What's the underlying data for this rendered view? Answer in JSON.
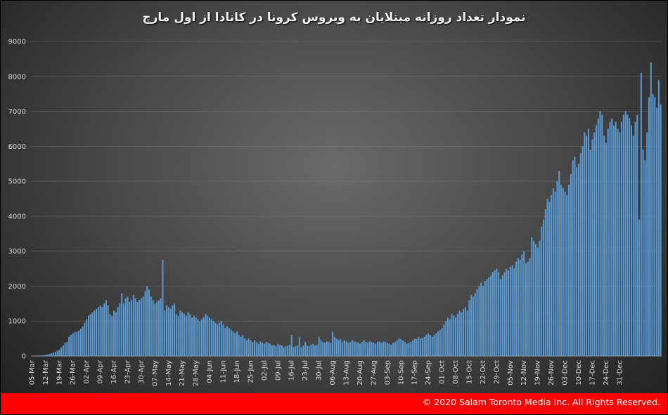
{
  "title": "نمودار تعداد روزانه مبتلایان به ویروس کرونا در کانادا از اول مارچ",
  "footer": {
    "copyright": "© 2020 Salam Toronto Media Inc. All Rights Reserved."
  },
  "colors": {
    "bar": "#5b9bd5",
    "footer": "#ff0000",
    "grid": "#8a8a8a"
  },
  "chart_data": {
    "type": "bar",
    "title": "نمودار تعداد روزانه مبتلایان به ویروس کرونا در کانادا از اول مارچ",
    "xlabel": "",
    "ylabel": "",
    "ylim": [
      0,
      9000
    ],
    "yticks": [
      0,
      1000,
      2000,
      3000,
      4000,
      5000,
      6000,
      7000,
      8000,
      9000
    ],
    "grid": true,
    "legend": "none",
    "x_start": "05-Mar",
    "x_end": "06-Jan",
    "xtick_labels": [
      "05-Mar",
      "12-Mar",
      "19-Mar",
      "26-Mar",
      "02-Apr",
      "09-Apr",
      "16-Apr",
      "23-Apr",
      "30-Apr",
      "07-May",
      "14-May",
      "21-May",
      "28-May",
      "04-Jun",
      "11-Jun",
      "18-Jun",
      "25-Jun",
      "02-Jul",
      "09-Jul",
      "16-Jul",
      "23-Jul",
      "30-Jul",
      "06-Aug",
      "13-Aug",
      "20-Aug",
      "27-Aug",
      "03-Sep",
      "10-Sep",
      "17-Sep",
      "24-Sep",
      "01-Oct",
      "08-Oct",
      "15-Oct",
      "22-Oct",
      "29-Oct",
      "05-Nov",
      "12-Nov",
      "19-Nov",
      "26-Nov",
      "03-Dec",
      "10-Dec",
      "17-Dec",
      "24-Dec",
      "31-Dec"
    ],
    "values": [
      2,
      3,
      5,
      8,
      12,
      18,
      25,
      35,
      45,
      60,
      80,
      100,
      120,
      150,
      180,
      250,
      300,
      380,
      400,
      550,
      600,
      650,
      680,
      700,
      720,
      780,
      850,
      950,
      1050,
      1150,
      1200,
      1250,
      1300,
      1350,
      1400,
      1450,
      1400,
      1500,
      1600,
      1450,
      1200,
      1150,
      1300,
      1250,
      1400,
      1500,
      1800,
      1500,
      1650,
      1700,
      1550,
      1600,
      1750,
      1650,
      1550,
      1600,
      1650,
      1700,
      1850,
      2000,
      1900,
      1700,
      1600,
      1500,
      1550,
      1600,
      1650,
      2750,
      1300,
      1450,
      1400,
      1350,
      1450,
      1500,
      1200,
      1150,
      1300,
      1250,
      1200,
      1150,
      1250,
      1200,
      1100,
      1150,
      1100,
      1050,
      1000,
      1050,
      1100,
      1200,
      1150,
      1100,
      1050,
      1000,
      950,
      900,
      950,
      1000,
      900,
      800,
      850,
      800,
      750,
      700,
      650,
      700,
      600,
      550,
      600,
      500,
      450,
      500,
      450,
      400,
      450,
      400,
      350,
      420,
      380,
      350,
      400,
      380,
      350,
      300,
      320,
      280,
      350,
      320,
      300,
      250,
      280,
      300,
      320,
      600,
      250,
      280,
      300,
      550,
      250,
      300,
      400,
      300,
      280,
      320,
      350,
      300,
      320,
      550,
      450,
      400,
      380,
      420,
      400,
      380,
      700,
      550,
      500,
      450,
      480,
      400,
      450,
      420,
      380,
      400,
      450,
      420,
      400,
      380,
      350,
      400,
      450,
      400,
      380,
      420,
      400,
      380,
      350,
      400,
      420,
      380,
      420,
      400,
      380,
      350,
      320,
      380,
      400,
      450,
      500,
      480,
      450,
      400,
      350,
      380,
      400,
      450,
      500,
      480,
      550,
      500,
      520,
      550,
      600,
      650,
      600,
      550,
      600,
      650,
      700,
      750,
      800,
      900,
      1000,
      1100,
      1050,
      1200,
      1150,
      1100,
      1200,
      1300,
      1250,
      1350,
      1400,
      1300,
      1600,
      1750,
      1700,
      1800,
      1900,
      2000,
      2100,
      2000,
      2150,
      2200,
      2250,
      2300,
      2400,
      2450,
      2500,
      2400,
      2200,
      2300,
      2400,
      2500,
      2450,
      2550,
      2600,
      2500,
      2700,
      2800,
      2750,
      2900,
      3000,
      2650,
      2700,
      2800,
      3400,
      3300,
      3200,
      3100,
      3300,
      3700,
      3900,
      4200,
      4500,
      4400,
      4600,
      4800,
      4700,
      5000,
      5300,
      4900,
      4800,
      4700,
      4600,
      4900,
      5200,
      5600,
      5700,
      5400,
      5500,
      5800,
      6000,
      6400,
      6300,
      6500,
      5900,
      6200,
      6400,
      6600,
      6800,
      7000,
      6900,
      6300,
      6100,
      6500,
      6700,
      6800,
      6600,
      6700,
      6500,
      6400,
      6700,
      6900,
      7000,
      6900,
      6800,
      6600,
      6300,
      6700,
      6900,
      3900,
      8100,
      5900,
      5600,
      6400,
      7400,
      8400,
      7500,
      7400,
      7100,
      7900,
      7200
    ]
  }
}
